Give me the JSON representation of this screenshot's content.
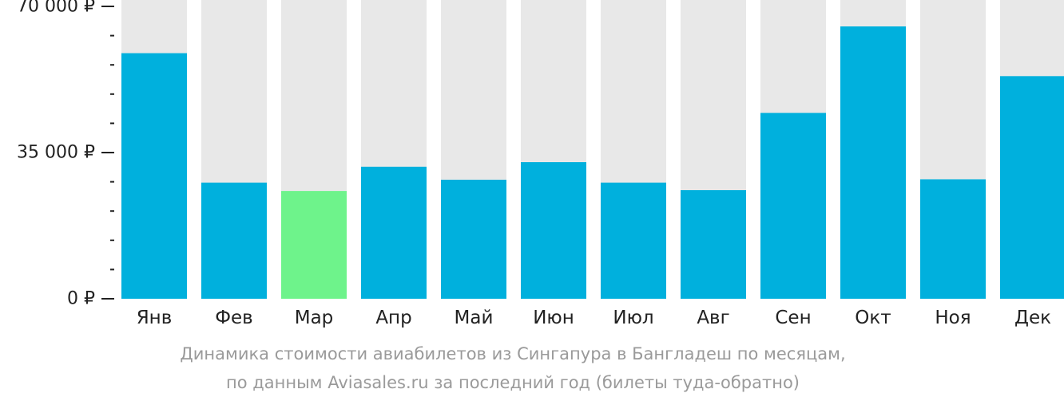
{
  "chart_data": {
    "type": "bar",
    "categories": [
      "Янв",
      "Фев",
      "Мар",
      "Апр",
      "Май",
      "Июн",
      "Июл",
      "Авг",
      "Сен",
      "Окт",
      "Ноя",
      "Дек"
    ],
    "values": [
      58800,
      27800,
      25800,
      31600,
      28500,
      32700,
      27800,
      26000,
      44500,
      65200,
      28600,
      53300
    ],
    "highlight_index": 2,
    "ylim": [
      0,
      70000
    ],
    "yticks": [
      {
        "value": 0,
        "label": "0 ₽"
      },
      {
        "value": 35000,
        "label": "35 000 ₽"
      },
      {
        "value": 70000,
        "label": "70 000 ₽"
      }
    ],
    "minor_tick_step": 7000,
    "colors": {
      "bar": "#00b0dd",
      "highlight": "#6ef38b",
      "track": "#e8e8e8",
      "axis": "#222222",
      "text": "#222222"
    },
    "grid": false,
    "title": "",
    "xlabel": "",
    "ylabel": ""
  },
  "caption": {
    "line1": "Динамика стоимости авиабилетов из Сингапура в Бангладеш по месяцам,",
    "line2": "по данным Aviasales.ru за последний год (билеты туда-обратно)"
  }
}
